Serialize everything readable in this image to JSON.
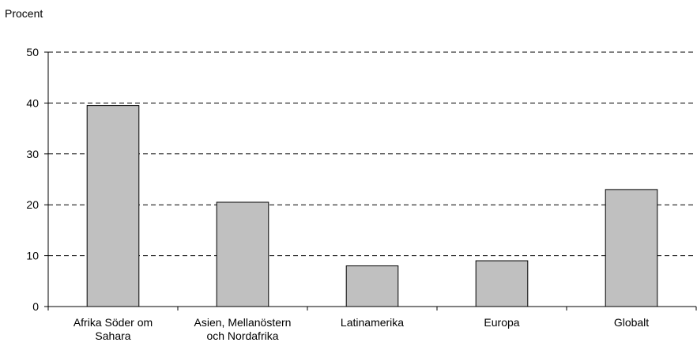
{
  "chart_data": {
    "type": "bar",
    "ylabel": "Procent",
    "xlabel": "",
    "ylim": [
      0,
      50
    ],
    "yticks": [
      0,
      10,
      20,
      30,
      40,
      50
    ],
    "grid": "horizontal dashed",
    "categories": [
      [
        "Afrika Söder om",
        "Sahara"
      ],
      [
        "Asien, Mellanöstern",
        "och Nordafrika"
      ],
      [
        "Latinamerika"
      ],
      [
        "Europa"
      ],
      [
        "Globalt"
      ]
    ],
    "values": [
      39.5,
      20.5,
      8,
      9,
      23
    ],
    "colors": {
      "bar_fill": "#c0c0c0",
      "bar_stroke": "#000000",
      "axis": "#000000",
      "grid": "#000000"
    }
  }
}
